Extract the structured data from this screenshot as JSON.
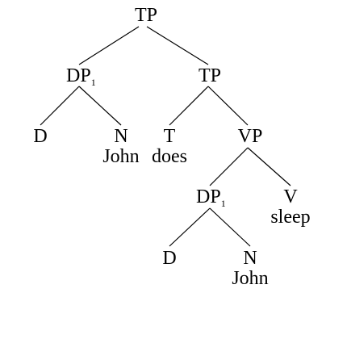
{
  "tree": {
    "root": {
      "label": "TP"
    },
    "dp1": {
      "label": "DP",
      "index": "1"
    },
    "tp": {
      "label": "TP"
    },
    "d1": {
      "label": "D"
    },
    "n1": {
      "label": "N",
      "word": "John"
    },
    "t": {
      "label": "T",
      "word": "does"
    },
    "vp": {
      "label": "VP"
    },
    "dp2": {
      "label": "DP",
      "index": "1"
    },
    "v": {
      "label": "V",
      "word": "sleep"
    },
    "d2": {
      "label": "D"
    },
    "n2": {
      "label": "N",
      "word": "John"
    }
  }
}
